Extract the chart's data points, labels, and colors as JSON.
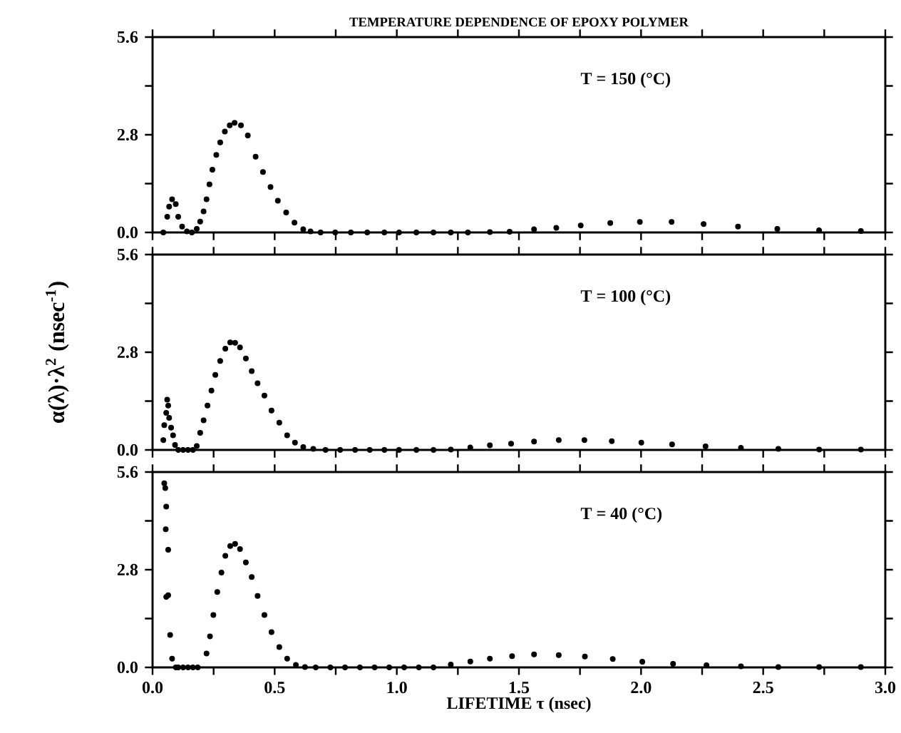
{
  "chart_data": [
    {
      "type": "scatter",
      "title": "TEMPERATURE DEPENDENCE OF EPOXY POLYMER",
      "annotations": [
        "T = 150 (°C)"
      ],
      "marker": "circle",
      "color": "#000000",
      "tick_labels": "y",
      "xlim": [
        0,
        3.0
      ],
      "ylim": [
        0,
        5.6
      ],
      "xticks": [
        0,
        0.25,
        0.5,
        0.75,
        1.0,
        1.25,
        1.5,
        1.75,
        2.0,
        2.25,
        2.5,
        2.75,
        3.0
      ],
      "yticks": [
        {
          "value": 0,
          "label": "0.0"
        },
        {
          "value": 1.4,
          "label": null
        },
        {
          "value": 2.8,
          "label": "2.8"
        },
        {
          "value": 4.2,
          "label": null
        },
        {
          "value": 5.6,
          "label": "5.6"
        }
      ],
      "x": [
        0.044,
        0.06,
        0.068,
        0.08,
        0.095,
        0.105,
        0.121,
        0.141,
        0.161,
        0.181,
        0.195,
        0.209,
        0.221,
        0.233,
        0.245,
        0.261,
        0.277,
        0.296,
        0.316,
        0.336,
        0.362,
        0.39,
        0.422,
        0.452,
        0.483,
        0.513,
        0.547,
        0.581,
        0.617,
        0.647,
        0.688,
        0.748,
        0.812,
        0.879,
        0.949,
        1.009,
        1.08,
        1.15,
        1.221,
        1.291,
        1.381,
        1.462,
        1.562,
        1.653,
        1.753,
        1.874,
        1.995,
        2.125,
        2.256,
        2.397,
        2.558,
        2.729,
        2.9
      ],
      "values": [
        0,
        0.45,
        0.74,
        0.95,
        0.81,
        0.45,
        0.17,
        0.03,
        0,
        0.1,
        0.31,
        0.6,
        0.95,
        1.38,
        1.8,
        2.22,
        2.58,
        2.89,
        3.07,
        3.14,
        3.07,
        2.78,
        2.17,
        1.73,
        1.3,
        0.91,
        0.57,
        0.28,
        0.09,
        0.03,
        0,
        0,
        0,
        0,
        0,
        0,
        0,
        0,
        0,
        0,
        0.01,
        0.02,
        0.09,
        0.13,
        0.2,
        0.27,
        0.3,
        0.3,
        0.24,
        0.17,
        0.1,
        0.06,
        0.04
      ]
    },
    {
      "type": "scatter",
      "ylabel": "α(λ)·λ$^{2}$  (nsec$^{-1}$)",
      "annotations": [
        "T = 100 (°C)"
      ],
      "marker": "circle",
      "color": "#000000",
      "tick_labels": "y",
      "xlim": [
        0,
        3.0
      ],
      "ylim": [
        0,
        5.6
      ],
      "xticks": [
        0,
        0.25,
        0.5,
        0.75,
        1.0,
        1.25,
        1.5,
        1.75,
        2.0,
        2.25,
        2.5,
        2.75,
        3.0
      ],
      "yticks": [
        {
          "value": 0,
          "label": "0.0"
        },
        {
          "value": 1.4,
          "label": null
        },
        {
          "value": 2.8,
          "label": "2.8"
        },
        {
          "value": 4.2,
          "label": null
        },
        {
          "value": 5.6,
          "label": "5.6"
        }
      ],
      "x": [
        0.044,
        0.048,
        0.056,
        0.06,
        0.064,
        0.068,
        0.076,
        0.084,
        0.092,
        0.105,
        0.125,
        0.145,
        0.165,
        0.181,
        0.195,
        0.209,
        0.225,
        0.241,
        0.257,
        0.277,
        0.298,
        0.318,
        0.338,
        0.358,
        0.382,
        0.406,
        0.43,
        0.458,
        0.487,
        0.519,
        0.551,
        0.583,
        0.617,
        0.658,
        0.708,
        0.768,
        0.829,
        0.889,
        0.949,
        1.009,
        1.08,
        1.15,
        1.221,
        1.301,
        1.381,
        1.468,
        1.562,
        1.663,
        1.768,
        1.88,
        2.001,
        2.127,
        2.264,
        2.409,
        2.562,
        2.729,
        2.9
      ],
      "values": [
        0.28,
        0.71,
        1.06,
        1.44,
        1.27,
        0.92,
        0.64,
        0.42,
        0.14,
        0,
        0,
        0,
        0,
        0.11,
        0.49,
        0.85,
        1.27,
        1.7,
        2.15,
        2.55,
        2.9,
        3.08,
        3.07,
        2.94,
        2.62,
        2.26,
        1.91,
        1.56,
        1.13,
        0.78,
        0.42,
        0.21,
        0.08,
        0.03,
        0,
        0,
        0,
        0,
        0,
        0,
        0,
        0,
        0.01,
        0.07,
        0.13,
        0.18,
        0.24,
        0.28,
        0.28,
        0.25,
        0.21,
        0.16,
        0.1,
        0.06,
        0.03,
        0.01,
        0.01
      ]
    },
    {
      "type": "scatter",
      "xlabel": "LIFETIME   τ (nsec)",
      "annotations": [
        "T =  40 (°C)"
      ],
      "marker": "circle",
      "color": "#000000",
      "xlim": [
        0,
        3.0
      ],
      "ylim": [
        0,
        5.6
      ],
      "xticks": [
        {
          "value": 0,
          "label": "0.0"
        },
        {
          "value": 0.25,
          "label": null
        },
        {
          "value": 0.5,
          "label": "0.5"
        },
        {
          "value": 0.75,
          "label": null
        },
        {
          "value": 1.0,
          "label": "1.0"
        },
        {
          "value": 1.25,
          "label": null
        },
        {
          "value": 1.5,
          "label": "1.5"
        },
        {
          "value": 1.75,
          "label": null
        },
        {
          "value": 2.0,
          "label": "2.0"
        },
        {
          "value": 2.25,
          "label": null
        },
        {
          "value": 2.5,
          "label": "2.5"
        },
        {
          "value": 2.75,
          "label": null
        },
        {
          "value": 3.0,
          "label": "3.0"
        }
      ],
      "yticks": [
        {
          "value": 0,
          "label": "0.0"
        },
        {
          "value": 1.4,
          "label": null
        },
        {
          "value": 2.8,
          "label": "2.8"
        },
        {
          "value": 4.2,
          "label": null
        },
        {
          "value": 5.6,
          "label": "5.6"
        }
      ],
      "x": [
        0.048,
        0.052,
        0.056,
        0.054,
        0.064,
        0.056,
        0.064,
        0.072,
        0.08,
        0.095,
        0.105,
        0.125,
        0.145,
        0.165,
        0.185,
        0.221,
        0.235,
        0.249,
        0.265,
        0.282,
        0.298,
        0.318,
        0.338,
        0.358,
        0.382,
        0.406,
        0.43,
        0.458,
        0.487,
        0.519,
        0.551,
        0.587,
        0.624,
        0.668,
        0.728,
        0.788,
        0.849,
        0.909,
        0.969,
        1.03,
        1.09,
        1.15,
        1.221,
        1.301,
        1.381,
        1.472,
        1.562,
        1.663,
        1.77,
        1.884,
        2.005,
        2.131,
        2.268,
        2.409,
        2.562,
        2.729,
        2.9
      ],
      "values": [
        5.28,
        5.14,
        4.61,
        3.96,
        3.37,
        2.02,
        2.07,
        0.93,
        0.25,
        0,
        0,
        0,
        0,
        0,
        0,
        0.4,
        0.89,
        1.5,
        2.16,
        2.72,
        3.2,
        3.48,
        3.54,
        3.39,
        3.01,
        2.59,
        2.05,
        1.5,
        1.01,
        0.58,
        0.25,
        0.07,
        0.01,
        0,
        0,
        0,
        0,
        0,
        0,
        0,
        0,
        0,
        0.08,
        0.17,
        0.25,
        0.32,
        0.37,
        0.35,
        0.31,
        0.24,
        0.16,
        0.1,
        0.06,
        0.03,
        0.01,
        0.01,
        0.01
      ]
    }
  ]
}
